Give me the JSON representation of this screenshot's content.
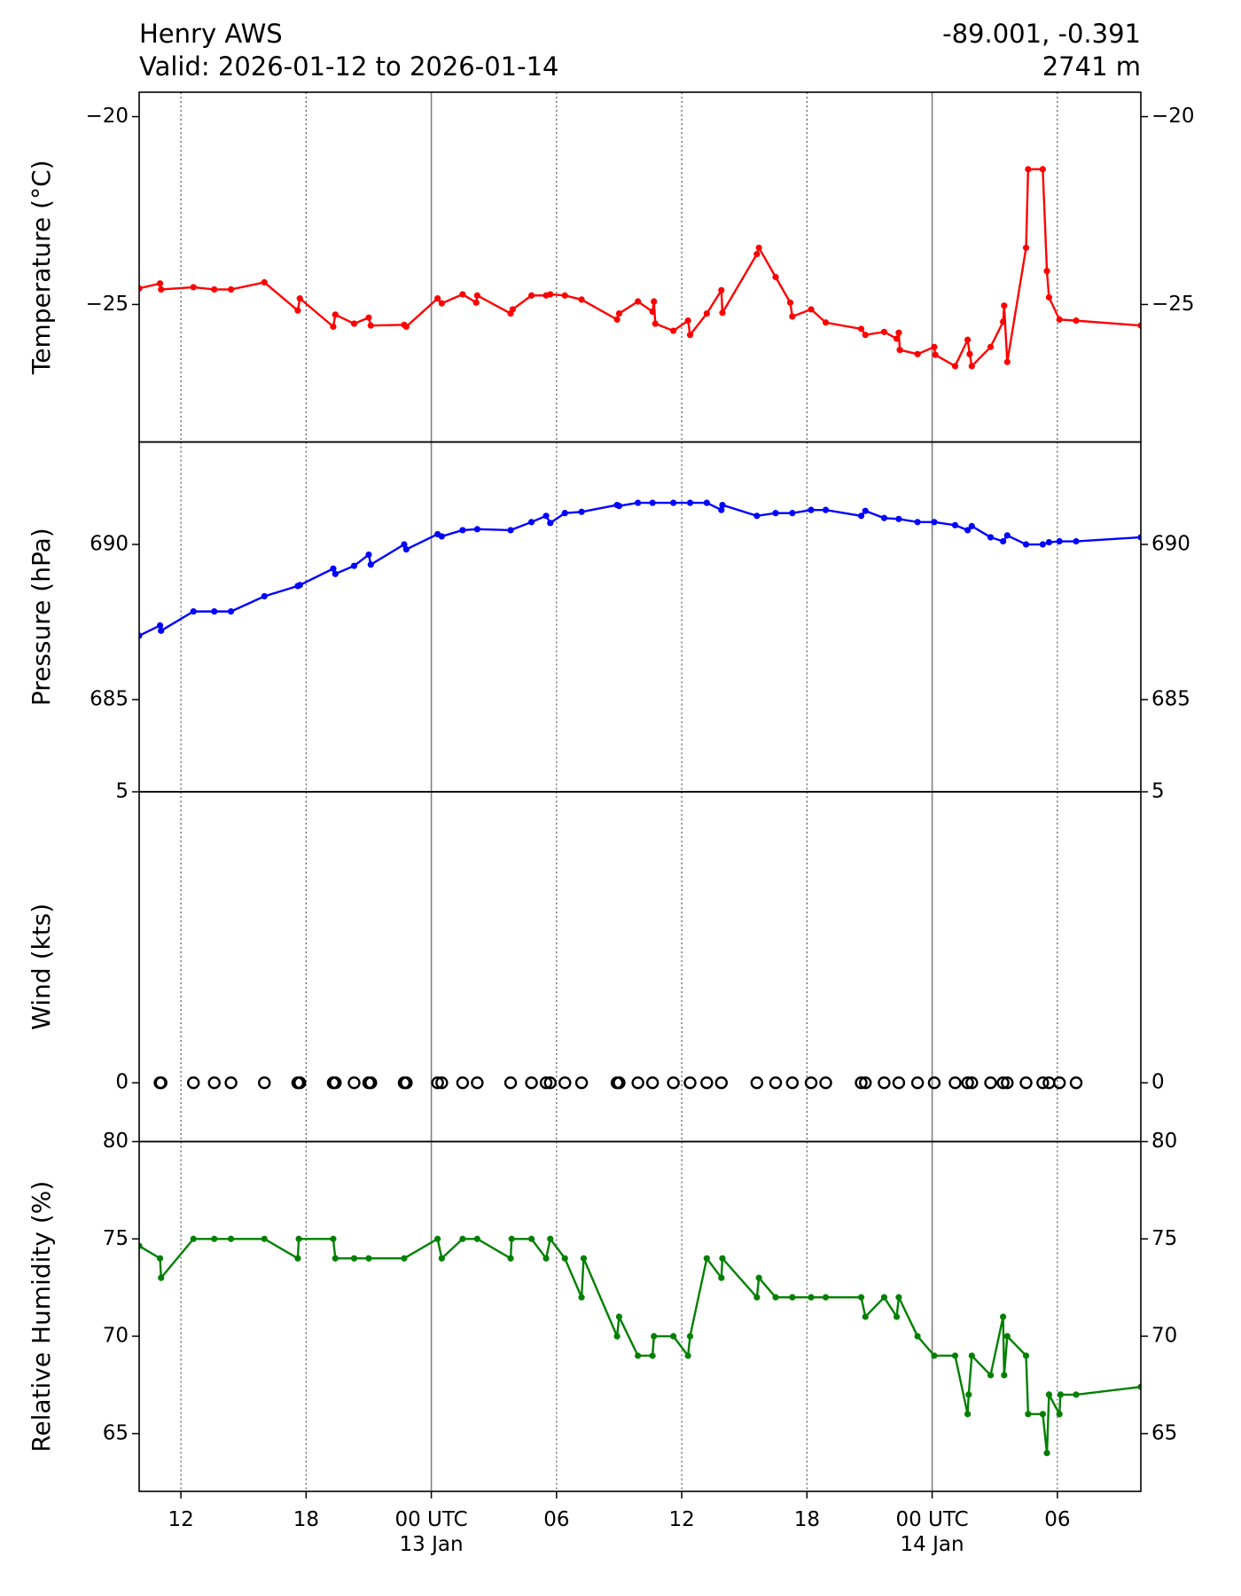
{
  "title": "Henry AWS",
  "subtitle": "Valid: 2026-01-12 to 2026-01-14",
  "coordinates": "-89.001, -0.391",
  "elevation": "2741 m",
  "chart_data": [
    {
      "type": "line",
      "ylabel": "Temperature (°C)",
      "color": "#ff0000",
      "ylim": [
        -28.66,
        -19.35
      ],
      "yticks": [
        {
          "value": -25,
          "label": "−25"
        },
        {
          "value": -20,
          "label": "−20"
        }
      ],
      "x": [
        "2026-01-12 10:00",
        "2026-01-12 11:00",
        "2026-01-12 11:03",
        "2026-01-12 12:36",
        "2026-01-12 13:36",
        "2026-01-12 14:24",
        "2026-01-12 16:00",
        "2026-01-12 17:36",
        "2026-01-12 17:42",
        "2026-01-12 19:18",
        "2026-01-12 19:24",
        "2026-01-12 20:18",
        "2026-01-12 21:00",
        "2026-01-12 21:06",
        "2026-01-12 22:42",
        "2026-01-12 22:48",
        "2026-01-13 00:18",
        "2026-01-13 00:30",
        "2026-01-13 01:30",
        "2026-01-13 02:09",
        "2026-01-13 02:12",
        "2026-01-13 03:48",
        "2026-01-13 03:54",
        "2026-01-13 04:48",
        "2026-01-13 05:30",
        "2026-01-13 05:42",
        "2026-01-13 06:24",
        "2026-01-13 07:12",
        "2026-01-13 08:54",
        "2026-01-13 09:00",
        "2026-01-13 09:54",
        "2026-01-13 10:36",
        "2026-01-13 10:40",
        "2026-01-13 10:44",
        "2026-01-13 11:36",
        "2026-01-13 12:18",
        "2026-01-13 12:24",
        "2026-01-13 13:12",
        "2026-01-13 13:54",
        "2026-01-13 13:57",
        "2026-01-13 15:36",
        "2026-01-13 15:42",
        "2026-01-13 16:30",
        "2026-01-13 17:12",
        "2026-01-13 17:18",
        "2026-01-13 18:12",
        "2026-01-13 18:54",
        "2026-01-13 20:36",
        "2026-01-13 20:48",
        "2026-01-13 21:42",
        "2026-01-13 22:18",
        "2026-01-13 22:24",
        "2026-01-13 22:27",
        "2026-01-13 23:18",
        "2026-01-14 00:06",
        "2026-01-14 00:09",
        "2026-01-14 01:06",
        "2026-01-14 01:42",
        "2026-01-14 01:48",
        "2026-01-14 01:54",
        "2026-01-14 02:48",
        "2026-01-14 03:24",
        "2026-01-14 03:27",
        "2026-01-14 03:36",
        "2026-01-14 04:30",
        "2026-01-14 04:36",
        "2026-01-14 05:18",
        "2026-01-14 05:30",
        "2026-01-14 05:36",
        "2026-01-14 06:06",
        "2026-01-14 06:54",
        "2026-01-14 10:00"
      ],
      "values": [
        -24.57,
        -24.44,
        -24.6,
        -24.54,
        -24.6,
        -24.6,
        -24.41,
        -25.16,
        -24.84,
        -25.59,
        -25.27,
        -25.51,
        -25.35,
        -25.56,
        -25.54,
        -25.59,
        -24.84,
        -24.97,
        -24.73,
        -24.95,
        -24.76,
        -25.24,
        -25.13,
        -24.76,
        -24.76,
        -24.73,
        -24.76,
        -24.87,
        -25.4,
        -25.24,
        -24.92,
        -25.19,
        -24.92,
        -25.51,
        -25.7,
        -25.43,
        -25.81,
        -25.24,
        -24.62,
        -25.22,
        -23.66,
        -23.49,
        -24.27,
        -24.95,
        -25.32,
        -25.13,
        -25.48,
        -25.65,
        -25.81,
        -25.73,
        -25.91,
        -25.75,
        -26.21,
        -26.32,
        -26.13,
        -26.34,
        -26.64,
        -25.94,
        -26.32,
        -26.64,
        -26.13,
        -25.46,
        -25.03,
        -26.53,
        -23.49,
        -21.4,
        -21.4,
        -24.11,
        -24.81,
        -25.4,
        -25.43,
        -25.56
      ]
    },
    {
      "type": "line",
      "ylabel": "Pressure (hPa)",
      "color": "#0000ff",
      "ylim": [
        682.03,
        693.3
      ],
      "yticks": [
        685,
        690
      ],
      "x": [
        "2026-01-12 10:00",
        "2026-01-12 11:00",
        "2026-01-12 11:03",
        "2026-01-12 12:36",
        "2026-01-12 13:36",
        "2026-01-12 14:24",
        "2026-01-12 16:00",
        "2026-01-12 17:36",
        "2026-01-12 17:42",
        "2026-01-12 19:18",
        "2026-01-12 19:24",
        "2026-01-12 20:18",
        "2026-01-12 21:00",
        "2026-01-12 21:06",
        "2026-01-12 22:42",
        "2026-01-12 22:48",
        "2026-01-13 00:18",
        "2026-01-13 00:30",
        "2026-01-13 01:30",
        "2026-01-13 02:12",
        "2026-01-13 03:48",
        "2026-01-13 04:48",
        "2026-01-13 05:30",
        "2026-01-13 05:42",
        "2026-01-13 06:24",
        "2026-01-13 07:12",
        "2026-01-13 08:54",
        "2026-01-13 09:00",
        "2026-01-13 09:54",
        "2026-01-13 10:36",
        "2026-01-13 11:36",
        "2026-01-13 12:24",
        "2026-01-13 13:12",
        "2026-01-13 13:54",
        "2026-01-13 13:57",
        "2026-01-13 15:36",
        "2026-01-13 16:30",
        "2026-01-13 17:18",
        "2026-01-13 18:12",
        "2026-01-13 18:54",
        "2026-01-13 20:36",
        "2026-01-13 20:48",
        "2026-01-13 21:42",
        "2026-01-13 22:24",
        "2026-01-13 23:18",
        "2026-01-14 00:06",
        "2026-01-14 01:06",
        "2026-01-14 01:42",
        "2026-01-14 01:54",
        "2026-01-14 02:48",
        "2026-01-14 03:24",
        "2026-01-14 03:36",
        "2026-01-14 04:30",
        "2026-01-14 05:18",
        "2026-01-14 05:36",
        "2026-01-14 06:06",
        "2026-01-14 06:54",
        "2026-01-14 10:00"
      ],
      "values": [
        687.06,
        687.39,
        687.22,
        687.84,
        687.84,
        687.84,
        688.33,
        688.66,
        688.69,
        689.22,
        689.05,
        689.31,
        689.67,
        689.35,
        690.0,
        689.84,
        690.33,
        690.26,
        690.46,
        690.49,
        690.46,
        690.72,
        690.92,
        690.69,
        691.01,
        691.05,
        691.27,
        691.24,
        691.34,
        691.34,
        691.34,
        691.34,
        691.34,
        691.11,
        691.27,
        690.92,
        691.01,
        691.01,
        691.11,
        691.11,
        690.92,
        691.08,
        690.85,
        690.82,
        690.72,
        690.72,
        690.62,
        690.46,
        690.59,
        690.23,
        690.1,
        690.29,
        690.0,
        690.0,
        690.07,
        690.1,
        690.1,
        690.23
      ]
    },
    {
      "type": "scatter",
      "marker": "open circle",
      "ylabel": "Wind (kts)",
      "color": "#000000",
      "ylim": [
        -1.01,
        5
      ],
      "yticks": [
        0,
        5
      ],
      "x": [
        "2026-01-12 11:00",
        "2026-01-12 11:03",
        "2026-01-12 12:36",
        "2026-01-12 13:36",
        "2026-01-12 14:24",
        "2026-01-12 16:00",
        "2026-01-12 17:36",
        "2026-01-12 17:42",
        "2026-01-12 19:18",
        "2026-01-12 19:24",
        "2026-01-12 20:18",
        "2026-01-12 21:00",
        "2026-01-12 21:06",
        "2026-01-12 22:42",
        "2026-01-12 22:48",
        "2026-01-13 00:18",
        "2026-01-13 00:30",
        "2026-01-13 01:30",
        "2026-01-13 02:12",
        "2026-01-13 03:48",
        "2026-01-13 04:48",
        "2026-01-13 05:30",
        "2026-01-13 05:42",
        "2026-01-13 06:24",
        "2026-01-13 07:12",
        "2026-01-13 08:54",
        "2026-01-13 09:00",
        "2026-01-13 09:54",
        "2026-01-13 10:36",
        "2026-01-13 11:36",
        "2026-01-13 12:24",
        "2026-01-13 13:12",
        "2026-01-13 13:54",
        "2026-01-13 15:36",
        "2026-01-13 16:30",
        "2026-01-13 17:18",
        "2026-01-13 18:12",
        "2026-01-13 18:54",
        "2026-01-13 20:36",
        "2026-01-13 20:48",
        "2026-01-13 21:42",
        "2026-01-13 22:24",
        "2026-01-13 23:18",
        "2026-01-14 00:06",
        "2026-01-14 01:06",
        "2026-01-14 01:42",
        "2026-01-14 01:54",
        "2026-01-14 02:48",
        "2026-01-14 03:24",
        "2026-01-14 03:36",
        "2026-01-14 04:30",
        "2026-01-14 05:18",
        "2026-01-14 05:36",
        "2026-01-14 06:06",
        "2026-01-14 06:54"
      ],
      "values": [
        0,
        0,
        0,
        0,
        0,
        0,
        0,
        0,
        0,
        0,
        0,
        0,
        0,
        0,
        0,
        0,
        0,
        0,
        0,
        0,
        0,
        0,
        0,
        0,
        0,
        0,
        0,
        0,
        0,
        0,
        0,
        0,
        0,
        0,
        0,
        0,
        0,
        0,
        0,
        0,
        0,
        0,
        0,
        0,
        0,
        0,
        0,
        0,
        0,
        0,
        0,
        0,
        0,
        0,
        0
      ]
    },
    {
      "type": "line",
      "ylabel": "Relative Humidity (%)",
      "color": "#008000",
      "ylim": [
        62.03,
        80
      ],
      "yticks": [
        65,
        70,
        75,
        80
      ],
      "xlim": [
        "2026-01-12 10:00",
        "2026-01-14 10:00"
      ],
      "xticks": [
        {
          "value": "2026-01-12 12:00",
          "label": "12"
        },
        {
          "value": "2026-01-12 18:00",
          "label": "18"
        },
        {
          "value": "2026-01-13 00:00",
          "label": "00 UTC\n13 Jan"
        },
        {
          "value": "2026-01-13 06:00",
          "label": "06"
        },
        {
          "value": "2026-01-13 12:00",
          "label": "12"
        },
        {
          "value": "2026-01-13 18:00",
          "label": "18"
        },
        {
          "value": "2026-01-14 00:00",
          "label": "00 UTC\n14 Jan"
        },
        {
          "value": "2026-01-14 06:00",
          "label": "06"
        }
      ],
      "x": [
        "2026-01-12 10:00",
        "2026-01-12 11:00",
        "2026-01-12 11:03",
        "2026-01-12 12:36",
        "2026-01-12 13:36",
        "2026-01-12 14:24",
        "2026-01-12 16:00",
        "2026-01-12 17:36",
        "2026-01-12 17:39",
        "2026-01-12 19:18",
        "2026-01-12 19:24",
        "2026-01-12 20:18",
        "2026-01-12 21:00",
        "2026-01-12 22:42",
        "2026-01-13 00:18",
        "2026-01-13 00:30",
        "2026-01-13 01:30",
        "2026-01-13 02:12",
        "2026-01-13 03:48",
        "2026-01-13 03:51",
        "2026-01-13 04:48",
        "2026-01-13 05:30",
        "2026-01-13 05:42",
        "2026-01-13 06:24",
        "2026-01-13 07:12",
        "2026-01-13 07:18",
        "2026-01-13 08:54",
        "2026-01-13 09:00",
        "2026-01-13 09:54",
        "2026-01-13 10:36",
        "2026-01-13 10:40",
        "2026-01-13 11:36",
        "2026-01-13 12:18",
        "2026-01-13 12:24",
        "2026-01-13 13:12",
        "2026-01-13 13:54",
        "2026-01-13 13:57",
        "2026-01-13 15:36",
        "2026-01-13 15:42",
        "2026-01-13 16:30",
        "2026-01-13 17:18",
        "2026-01-13 18:12",
        "2026-01-13 18:54",
        "2026-01-13 20:36",
        "2026-01-13 20:48",
        "2026-01-13 21:42",
        "2026-01-13 22:18",
        "2026-01-13 22:24",
        "2026-01-13 23:18",
        "2026-01-14 00:06",
        "2026-01-14 01:06",
        "2026-01-14 01:42",
        "2026-01-14 01:45",
        "2026-01-14 01:54",
        "2026-01-14 02:48",
        "2026-01-14 03:24",
        "2026-01-14 03:27",
        "2026-01-14 03:36",
        "2026-01-14 04:30",
        "2026-01-14 04:36",
        "2026-01-14 05:18",
        "2026-01-14 05:30",
        "2026-01-14 05:36",
        "2026-01-14 06:06",
        "2026-01-14 06:09",
        "2026-01-14 06:54",
        "2026-01-14 10:00"
      ],
      "values": [
        74.64,
        74,
        73,
        75,
        75,
        75,
        75,
        74,
        75,
        75,
        74,
        74,
        74,
        74,
        75,
        74,
        75,
        75,
        74,
        75,
        75,
        74,
        75,
        74,
        72,
        74,
        70,
        71,
        69,
        69,
        70,
        70,
        69,
        70,
        74,
        73,
        74,
        72,
        73,
        72,
        72,
        72,
        72,
        72,
        71,
        72,
        71,
        72,
        70,
        69,
        69,
        66,
        67,
        69,
        68,
        71,
        68,
        70,
        69,
        66,
        66,
        64,
        67,
        66,
        67,
        67,
        67.4
      ]
    }
  ]
}
